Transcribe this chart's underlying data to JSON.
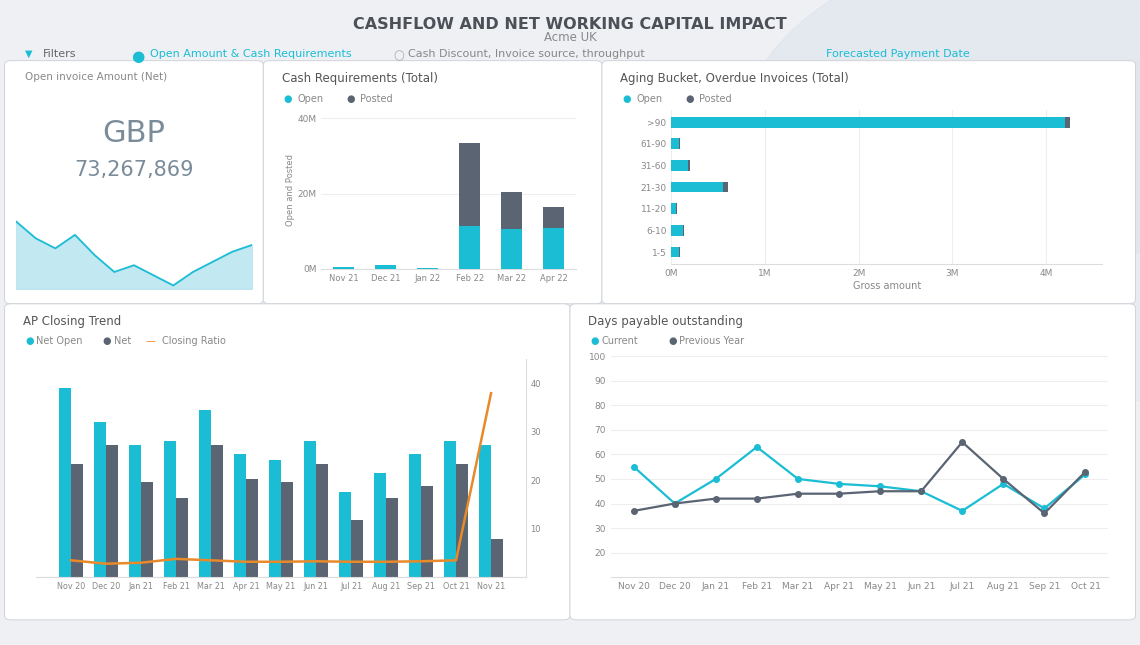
{
  "title": "CASHFLOW AND NET WORKING CAPITAL IMPACT",
  "subtitle": "Acme UK",
  "bg_color": "#eef0f4",
  "card_color": "#ffffff",
  "cyan": "#1bbdd4",
  "dark_gray": "#5a6472",
  "light_cyan": "#9dd9e8",
  "orange": "#e8892a",
  "kpi_label": "Open invoice Amount (Net)",
  "kpi_currency": "GBP",
  "kpi_value": "73,267,869",
  "kpi_sparkline_y": [
    82,
    72,
    66,
    74,
    62,
    52,
    56,
    50,
    44,
    52,
    58,
    64,
    68
  ],
  "cash_req_title": "Cash Requirements (Total)",
  "cash_req_ylabel": "Open and Posted",
  "cash_req_months": [
    "Nov 21",
    "Dec 21",
    "Jan 22",
    "Feb 22",
    "Mar 22",
    "Apr 22"
  ],
  "cash_req_open": [
    0.4,
    1.0,
    0.3,
    11.5,
    10.5,
    11.0
  ],
  "cash_req_posted": [
    0.0,
    0.0,
    0.0,
    22.0,
    10.0,
    5.5
  ],
  "aging_title": "Aging Bucket, Overdue Invoices (Total)",
  "aging_xlabel": "Gross amount",
  "aging_buckets": [
    "1-5",
    "6-10",
    "11-20",
    "21-30",
    "31-60",
    "61-90",
    ">90"
  ],
  "aging_open": [
    0.08,
    0.12,
    0.05,
    0.55,
    0.18,
    0.08,
    4.2
  ],
  "aging_posted": [
    0.01,
    0.01,
    0.01,
    0.05,
    0.02,
    0.01,
    0.05
  ],
  "ap_title": "AP Closing Trend",
  "ap_months": [
    "Nov 20",
    "Dec 20",
    "Jan 21",
    "Feb 21",
    "Mar 21",
    "Apr 21",
    "May 21",
    "Jun 21",
    "Jul 21",
    "Aug 21",
    "Sep 21",
    "Oct 21",
    "Nov 21"
  ],
  "ap_net_open": [
    100,
    82,
    70,
    72,
    88,
    65,
    62,
    72,
    45,
    55,
    65,
    72,
    70
  ],
  "ap_net": [
    60,
    70,
    50,
    42,
    70,
    52,
    50,
    60,
    30,
    42,
    48,
    60,
    20
  ],
  "ap_closing": [
    3.5,
    2.8,
    3.0,
    3.8,
    3.5,
    3.2,
    3.2,
    3.3,
    3.2,
    3.2,
    3.3,
    3.5,
    38
  ],
  "dpo_title": "Days payable outstanding",
  "dpo_months": [
    "Nov 20",
    "Dec 20",
    "Jan 21",
    "Feb 21",
    "Mar 21",
    "Apr 21",
    "May 21",
    "Jun 21",
    "Jul 21",
    "Aug 21",
    "Sep 21",
    "Oct 21"
  ],
  "dpo_current": [
    55,
    40,
    50,
    63,
    50,
    48,
    47,
    45,
    37,
    48,
    38,
    52
  ],
  "dpo_prev_year": [
    37,
    40,
    42,
    42,
    44,
    44,
    45,
    45,
    65,
    50,
    36,
    53
  ],
  "filter_text": "Filters",
  "filter_opt1": "Open Amount & Cash Requirements",
  "filter_opt2": "Cash Discount, Invoice source, throughput",
  "filter_opt3": "Forecasted Payment Date"
}
